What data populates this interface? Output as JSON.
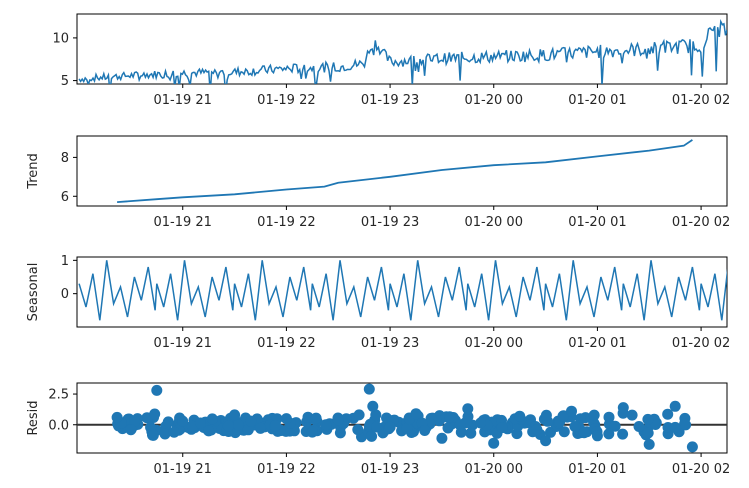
{
  "chart_data": [
    {
      "type": "line",
      "ylabel": "",
      "x_ticks": [
        "01-19 21",
        "01-19 22",
        "01-19 23",
        "01-20 00",
        "01-20 01",
        "01-20 02"
      ],
      "y_ticks": [
        "5",
        "10"
      ],
      "ylim": [
        4.6,
        12.8
      ],
      "series": [
        {
          "color": "#1f77b4",
          "x": [
            "01-19 20:00",
            "01-19 20:15",
            "01-19 20:30",
            "01-19 21:00",
            "01-19 21:30",
            "01-19 22:00",
            "01-19 22:30",
            "01-19 22:45",
            "01-19 22:50",
            "01-19 23:00",
            "01-19 23:30",
            "01-20 00:00",
            "01-20 00:30",
            "01-20 01:00",
            "01-20 01:30",
            "01-20 02:00",
            "01-20 02:10",
            "01-20 02:15"
          ],
          "values": [
            5.2,
            5.4,
            5.6,
            5.9,
            6.0,
            6.4,
            6.6,
            7.0,
            9.8,
            7.2,
            7.6,
            7.8,
            8.0,
            8.4,
            8.7,
            9.2,
            11.8,
            10.5
          ]
        }
      ]
    },
    {
      "type": "line",
      "ylabel": "Trend",
      "x_ticks": [
        "01-19 21",
        "01-19 22",
        "01-19 23",
        "01-20 00",
        "01-20 01",
        "01-20 02"
      ],
      "y_ticks": [
        "6",
        "8"
      ],
      "ylim": [
        5.5,
        9.1
      ],
      "series": [
        {
          "color": "#1f77b4",
          "x": [
            "01-19 20:22",
            "01-19 20:45",
            "01-19 21:00",
            "01-19 21:30",
            "01-19 22:00",
            "01-19 22:22",
            "01-19 22:30",
            "01-19 23:00",
            "01-19 23:30",
            "01-20 00:00",
            "01-20 00:30",
            "01-20 01:00",
            "01-20 01:30",
            "01-20 01:50",
            "01-20 01:55"
          ],
          "values": [
            5.7,
            5.85,
            5.95,
            6.1,
            6.35,
            6.5,
            6.7,
            7.0,
            7.35,
            7.6,
            7.75,
            8.05,
            8.35,
            8.6,
            8.9
          ]
        }
      ]
    },
    {
      "type": "line",
      "ylabel": "Seasonal",
      "x_ticks": [
        "01-19 21",
        "01-19 22",
        "01-19 23",
        "01-20 00",
        "01-20 01",
        "01-20 02"
      ],
      "y_ticks": [
        "0",
        "1"
      ],
      "ylim": [
        -1.0,
        1.1
      ],
      "series": [
        {
          "color": "#1f77b4",
          "period": "00:45",
          "x": [
            "01-19 20:00",
            "01-19 20:04",
            "01-19 20:08",
            "01-19 20:12",
            "01-19 20:16",
            "01-19 20:20",
            "01-19 20:24",
            "01-19 20:28",
            "01-19 20:32",
            "01-19 20:36",
            "01-19 20:40",
            "01-19 20:44"
          ],
          "values": [
            0.3,
            -0.4,
            0.6,
            -0.8,
            1.0,
            -0.3,
            0.2,
            -0.7,
            0.5,
            -0.2,
            0.8,
            -0.5
          ]
        }
      ]
    },
    {
      "type": "scatter",
      "ylabel": "Resid",
      "x_ticks": [
        "01-19 21",
        "01-19 22",
        "01-19 23",
        "01-20 00",
        "01-20 01",
        "01-20 02"
      ],
      "y_ticks": [
        "0.0",
        "2.5"
      ],
      "ylim": [
        -2.3,
        3.4
      ],
      "baseline": 0,
      "series": [
        {
          "color": "#1f77b4",
          "x": [
            "01-19 20:22",
            "01-19 20:30",
            "01-19 20:45",
            "01-19 21:00",
            "01-19 21:15",
            "01-19 21:30",
            "01-19 21:45",
            "01-19 22:00",
            "01-19 22:15",
            "01-19 22:30",
            "01-19 22:48",
            "01-19 22:50",
            "01-19 23:00",
            "01-19 23:15",
            "01-19 23:30",
            "01-19 23:45",
            "01-20 00:00",
            "01-20 00:15",
            "01-20 00:30",
            "01-20 00:45",
            "01-20 01:00",
            "01-20 01:15",
            "01-20 01:30",
            "01-20 01:45",
            "01-20 01:55"
          ],
          "values": [
            0.6,
            -0.4,
            2.8,
            0.3,
            -0.5,
            0.8,
            -0.3,
            0.5,
            -0.6,
            0.4,
            2.9,
            1.5,
            -0.2,
            0.9,
            -1.1,
            1.3,
            -1.5,
            0.7,
            -1.3,
            1.1,
            -0.9,
            1.4,
            -1.6,
            1.5,
            -1.8
          ]
        }
      ]
    }
  ]
}
